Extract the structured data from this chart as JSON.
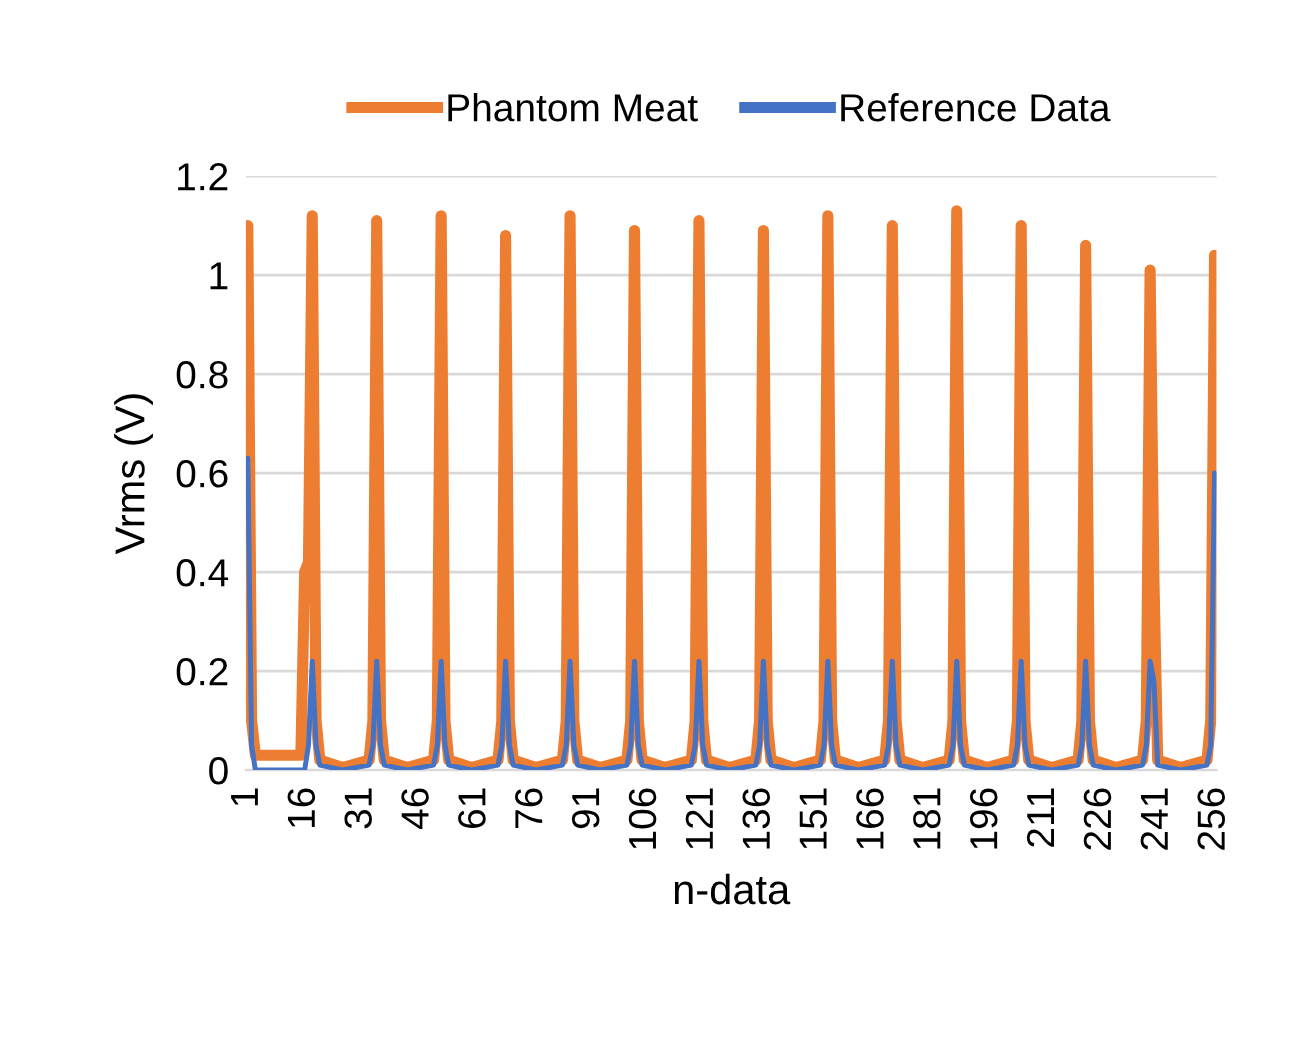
{
  "chart_data": {
    "type": "line",
    "xlabel": "n-data",
    "ylabel": "Vrms (V)",
    "xlim": [
      0.5,
      256.5
    ],
    "xticks": [
      1,
      16,
      31,
      46,
      61,
      76,
      91,
      106,
      121,
      136,
      151,
      166,
      181,
      196,
      211,
      226,
      241,
      256
    ],
    "ylim": [
      0,
      1.2
    ],
    "yticks": [
      0,
      0.2,
      0.4,
      0.6,
      0.8,
      1,
      1.2
    ],
    "x": [
      1,
      2,
      3,
      9,
      15,
      16,
      17,
      18,
      19,
      20,
      26,
      33,
      34,
      35,
      36,
      37,
      43,
      50,
      51,
      52,
      53,
      54,
      60,
      67,
      68,
      69,
      70,
      71,
      77,
      84,
      85,
      86,
      87,
      88,
      94,
      101,
      102,
      103,
      104,
      105,
      111,
      118,
      119,
      120,
      121,
      122,
      128,
      135,
      136,
      137,
      138,
      139,
      145,
      152,
      153,
      154,
      155,
      156,
      162,
      169,
      170,
      171,
      172,
      173,
      179,
      186,
      187,
      188,
      189,
      190,
      196,
      203,
      204,
      205,
      206,
      207,
      213,
      220,
      221,
      222,
      223,
      224,
      230,
      237,
      238,
      239,
      240,
      241,
      247,
      254,
      255,
      256
    ],
    "series": [
      {
        "name": "Phantom Meat",
        "color": "#ed7d31",
        "values": [
          1.1,
          0.1,
          0.03,
          0.03,
          0.03,
          0.4,
          0.42,
          1.12,
          0.1,
          0.02,
          0.005,
          0.02,
          0.1,
          1.11,
          0.1,
          0.02,
          0.005,
          0.02,
          0.1,
          1.12,
          0.1,
          0.02,
          0.005,
          0.02,
          0.1,
          1.08,
          0.1,
          0.02,
          0.005,
          0.02,
          0.1,
          1.12,
          0.1,
          0.02,
          0.005,
          0.02,
          0.1,
          1.09,
          0.1,
          0.02,
          0.005,
          0.02,
          0.1,
          1.11,
          0.1,
          0.02,
          0.005,
          0.02,
          0.1,
          1.09,
          0.1,
          0.02,
          0.005,
          0.02,
          0.1,
          1.12,
          0.1,
          0.02,
          0.005,
          0.02,
          0.1,
          1.1,
          0.1,
          0.02,
          0.005,
          0.02,
          0.1,
          1.13,
          0.1,
          0.02,
          0.005,
          0.02,
          0.1,
          1.1,
          0.1,
          0.02,
          0.005,
          0.02,
          0.1,
          1.06,
          0.1,
          0.02,
          0.005,
          0.02,
          0.1,
          1.01,
          0.39,
          0.02,
          0.005,
          0.02,
          0.1,
          1.04
        ]
      },
      {
        "name": "Reference Data",
        "color": "#4472c4",
        "values": [
          0.63,
          0.05,
          0.0,
          0.0,
          0.0,
          0.0,
          0.05,
          0.22,
          0.05,
          0.01,
          0.0,
          0.01,
          0.05,
          0.22,
          0.05,
          0.01,
          0.0,
          0.01,
          0.05,
          0.22,
          0.05,
          0.01,
          0.0,
          0.01,
          0.05,
          0.22,
          0.05,
          0.01,
          0.0,
          0.01,
          0.05,
          0.22,
          0.05,
          0.01,
          0.0,
          0.01,
          0.05,
          0.22,
          0.05,
          0.01,
          0.0,
          0.01,
          0.05,
          0.22,
          0.05,
          0.01,
          0.0,
          0.01,
          0.05,
          0.22,
          0.05,
          0.01,
          0.0,
          0.01,
          0.05,
          0.22,
          0.05,
          0.01,
          0.0,
          0.01,
          0.05,
          0.22,
          0.05,
          0.01,
          0.0,
          0.01,
          0.05,
          0.22,
          0.05,
          0.01,
          0.0,
          0.01,
          0.05,
          0.22,
          0.05,
          0.01,
          0.0,
          0.01,
          0.05,
          0.22,
          0.05,
          0.01,
          0.0,
          0.01,
          0.05,
          0.22,
          0.18,
          0.01,
          0.0,
          0.01,
          0.05,
          0.6
        ]
      }
    ],
    "grid": "y",
    "legend": "top",
    "marker": "none",
    "line_style": "solid"
  }
}
